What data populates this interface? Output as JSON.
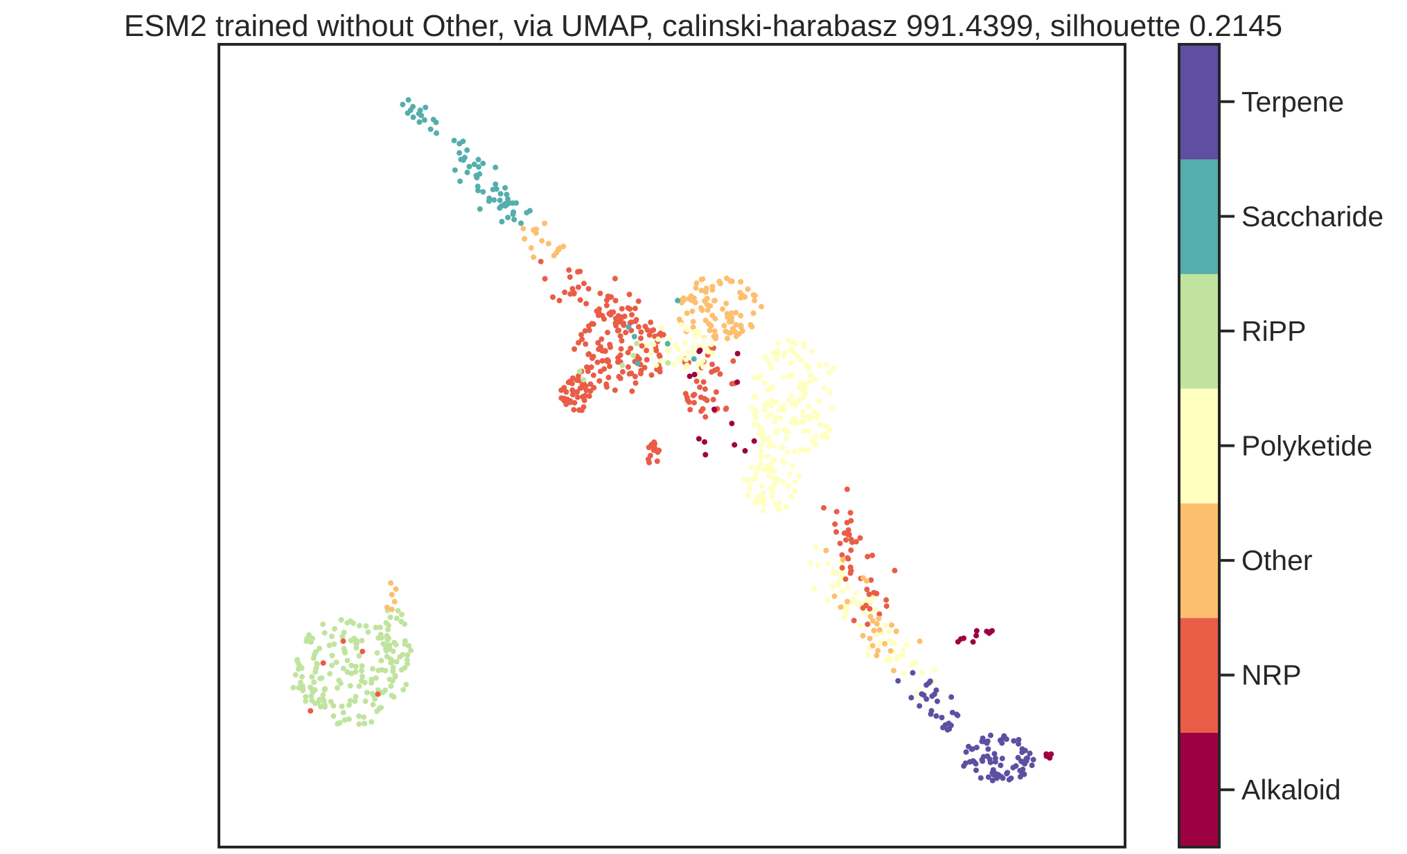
{
  "chart_data": {
    "type": "scatter",
    "title": "ESM2 trained without Other, via UMAP, calinski-harabasz 991.4399, silhouette 0.2145",
    "xlabel": "",
    "ylabel": "",
    "axes_ticks": "none",
    "grid": false,
    "legend": "colorbar-right",
    "colorbar_classes": [
      "Alkaloid",
      "NRP",
      "Other",
      "Polyketide",
      "RiPP",
      "Saccharide",
      "Terpene"
    ],
    "class_colors": {
      "Alkaloid": "#9e0142",
      "NRP": "#e95d47",
      "Other": "#fdbf6f",
      "Polyketide": "#ffffbf",
      "RiPP": "#c0e49f",
      "Saccharide": "#54aead",
      "Terpene": "#5e4fa2"
    },
    "xlim": [
      0,
      100
    ],
    "ylim": [
      0,
      100
    ],
    "point_size": 4,
    "clusters": [
      {
        "label": "Saccharide",
        "seed": 11,
        "count": 70,
        "path": [
          [
            21,
            92.5
          ],
          [
            26,
            87
          ],
          [
            30,
            81.5
          ],
          [
            33,
            78.5
          ]
        ],
        "spread": 0.9
      },
      {
        "label": "Other",
        "seed": 12,
        "count": 16,
        "path": [
          [
            34,
            77
          ],
          [
            37,
            73.5
          ]
        ],
        "spread": 0.8
      },
      {
        "label": "NRP",
        "seed": 13,
        "count": 120,
        "ellipse": [
          44,
          62,
          5.5,
          5.5
        ]
      },
      {
        "label": "NRP",
        "seed": 14,
        "count": 40,
        "ellipse": [
          39.5,
          56.5,
          1.8,
          2.2
        ]
      },
      {
        "label": "NRP",
        "seed": 15,
        "count": 40,
        "path": [
          [
            37,
            71
          ],
          [
            41,
            69
          ],
          [
            45,
            66
          ]
        ],
        "spread": 1.3
      },
      {
        "label": "NRP",
        "seed": 16,
        "count": 15,
        "ellipse": [
          48,
          49,
          0.8,
          1.5
        ]
      },
      {
        "label": "NRP",
        "seed": 17,
        "count": 40,
        "ellipse": [
          54,
          58,
          3.5,
          4.5
        ]
      },
      {
        "label": "Other",
        "seed": 18,
        "count": 90,
        "ellipse": [
          55,
          67,
          5,
          4
        ]
      },
      {
        "label": "Polyketide",
        "seed": 19,
        "count": 130,
        "ellipse": [
          63.5,
          56,
          5,
          7.5
        ]
      },
      {
        "label": "Polyketide",
        "seed": 20,
        "count": 60,
        "ellipse": [
          61,
          46,
          3,
          4.5
        ]
      },
      {
        "label": "Polyketide",
        "seed": 21,
        "count": 40,
        "ellipse": [
          51,
          62,
          4,
          3.5
        ]
      },
      {
        "label": "Polyketide",
        "seed": 22,
        "count": 70,
        "path": [
          [
            67,
            35
          ],
          [
            70,
            30
          ],
          [
            74,
            25
          ],
          [
            78,
            21
          ]
        ],
        "spread": 1.4
      },
      {
        "label": "NRP",
        "seed": 23,
        "count": 45,
        "path": [
          [
            69,
            42
          ],
          [
            70.5,
            34
          ],
          [
            73,
            29
          ]
        ],
        "spread": 1.3
      },
      {
        "label": "Other",
        "seed": 24,
        "count": 25,
        "path": [
          [
            67,
            37
          ],
          [
            72,
            28
          ],
          [
            77,
            22
          ]
        ],
        "spread": 1.6
      },
      {
        "label": "Terpene",
        "seed": 25,
        "count": 28,
        "path": [
          [
            77,
            21
          ],
          [
            79,
            18
          ],
          [
            81,
            15
          ]
        ],
        "spread": 0.8
      },
      {
        "label": "Terpene",
        "seed": 26,
        "count": 75,
        "ellipse": [
          86,
          11,
          4,
          3
        ]
      },
      {
        "label": "Alkaloid",
        "seed": 27,
        "count": 10,
        "path": [
          [
            81.5,
            25.5
          ],
          [
            86.5,
            27.5
          ]
        ],
        "spread": 0.4
      },
      {
        "label": "Alkaloid",
        "seed": 28,
        "count": 6,
        "ellipse": [
          91.5,
          11.5,
          0.4,
          0.6
        ]
      },
      {
        "label": "Alkaloid",
        "seed": 29,
        "count": 14,
        "ellipse": [
          56,
          55,
          6,
          8
        ]
      },
      {
        "label": "RiPP",
        "seed": 30,
        "count": 150,
        "ellipse": [
          14,
          21.5,
          6,
          7
        ]
      },
      {
        "label": "RiPP",
        "seed": 31,
        "count": 45,
        "ellipse": [
          19,
          24,
          2.2,
          6
        ]
      },
      {
        "label": "Other",
        "seed": 32,
        "count": 6,
        "ellipse": [
          19,
          31,
          0.8,
          2
        ]
      },
      {
        "label": "NRP",
        "seed": 33,
        "count": 5,
        "ellipse": [
          15,
          20,
          6,
          8
        ]
      },
      {
        "label": "Saccharide",
        "seed": 34,
        "count": 6,
        "ellipse": [
          47,
          63,
          8,
          7
        ]
      },
      {
        "label": "RiPP",
        "seed": 35,
        "count": 6,
        "ellipse": [
          44,
          60,
          6,
          5
        ]
      }
    ]
  }
}
